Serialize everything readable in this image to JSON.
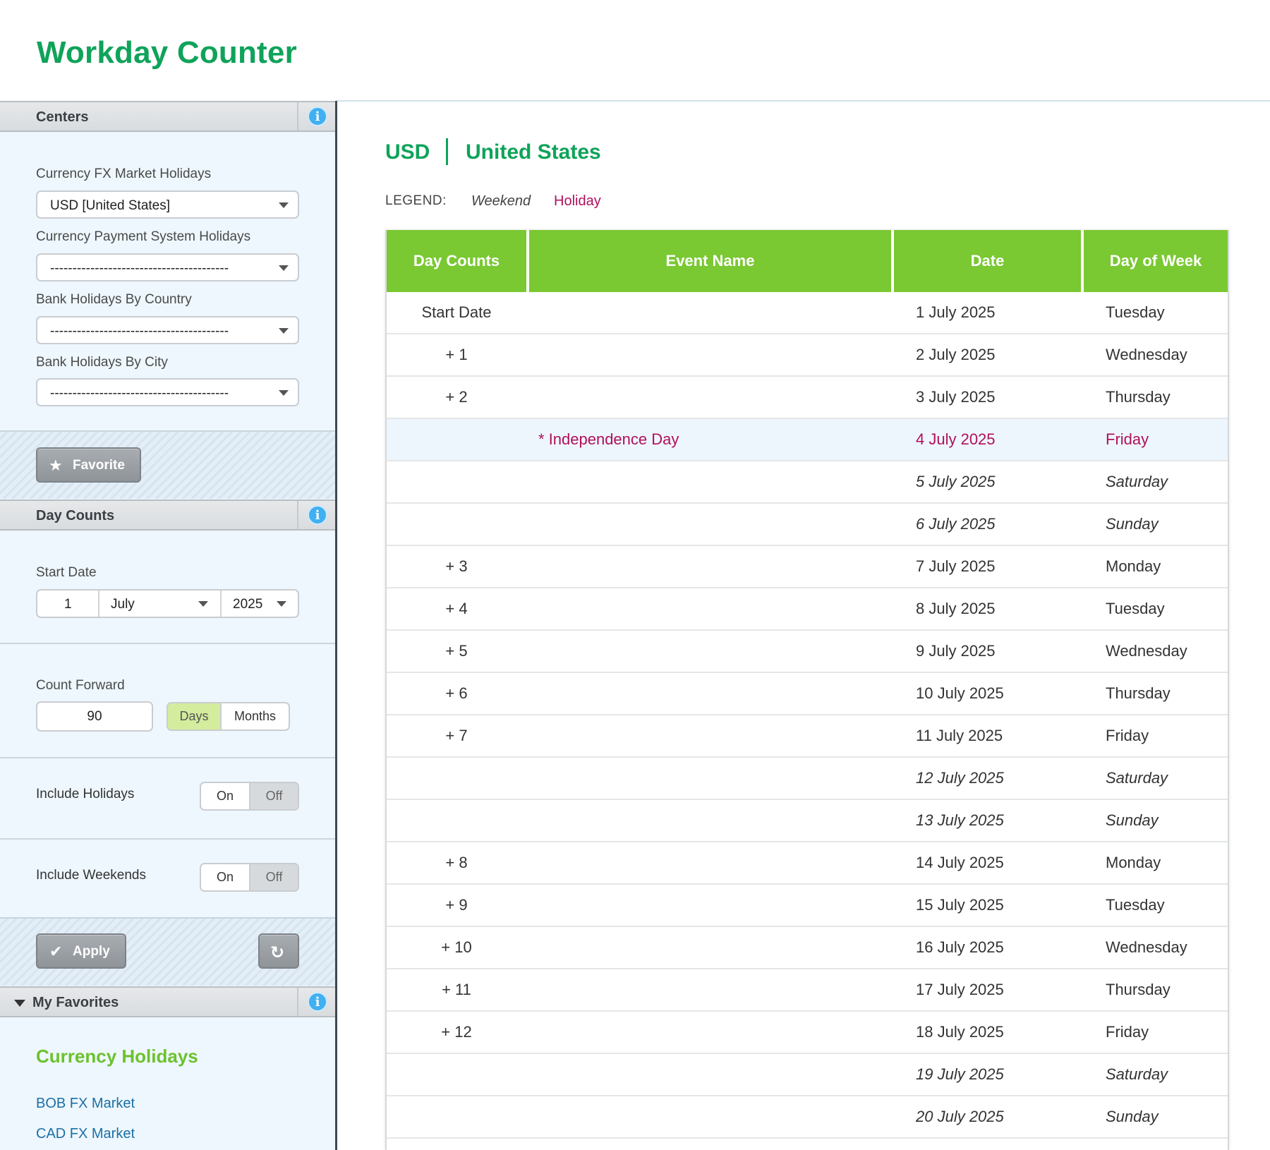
{
  "app": {
    "title": "Workday Counter"
  },
  "sidebar": {
    "centers": {
      "heading": "Centers",
      "fx_label": "Currency FX Market Holidays",
      "fx_value": "USD [United States]",
      "payment_label": "Currency Payment System Holidays",
      "payment_value": "----------------------------------------",
      "bank_country_label": "Bank Holidays By Country",
      "bank_country_value": "----------------------------------------",
      "bank_city_label": "Bank Holidays By City",
      "bank_city_value": "----------------------------------------",
      "favorite_button": "Favorite"
    },
    "day_counts": {
      "heading": "Day Counts",
      "start_date_label": "Start Date",
      "start_day": "1",
      "start_month": "July",
      "start_year": "2025",
      "count_forward_label": "Count Forward",
      "count_forward_value": "90",
      "unit_days": "Days",
      "unit_months": "Months",
      "unit_selected": "Days",
      "include_holidays_label": "Include Holidays",
      "include_holidays_on": "On",
      "include_holidays_off": "Off",
      "include_holidays_selected": "Off",
      "include_weekends_label": "Include Weekends",
      "include_weekends_on": "On",
      "include_weekends_off": "Off",
      "include_weekends_selected": "Off",
      "apply_button": "Apply"
    },
    "favorites": {
      "heading": "My Favorites",
      "group_title": "Currency Holidays",
      "links": [
        "BOB FX Market",
        "CAD FX Market"
      ]
    }
  },
  "main": {
    "currency_code": "USD",
    "country": "United States",
    "legend": {
      "label": "LEGEND:",
      "weekend": "Weekend",
      "holiday": "Holiday"
    },
    "colors": {
      "brand_green": "#0fa35a",
      "header_green": "#7ac832",
      "holiday": "#b0105c"
    },
    "table": {
      "columns": [
        "Day Counts",
        "Event Name",
        "Date",
        "Day of Week"
      ],
      "rows": [
        {
          "count": "Start Date",
          "event": "",
          "date": "1 July 2025",
          "dow": "Tuesday",
          "type": "normal"
        },
        {
          "count": "+ 1",
          "event": "",
          "date": "2 July 2025",
          "dow": "Wednesday",
          "type": "normal"
        },
        {
          "count": "+ 2",
          "event": "",
          "date": "3 July 2025",
          "dow": "Thursday",
          "type": "normal"
        },
        {
          "count": "",
          "event": "* Independence Day",
          "date": "4 July 2025",
          "dow": "Friday",
          "type": "holiday"
        },
        {
          "count": "",
          "event": "",
          "date": "5 July 2025",
          "dow": "Saturday",
          "type": "weekend"
        },
        {
          "count": "",
          "event": "",
          "date": "6 July 2025",
          "dow": "Sunday",
          "type": "weekend"
        },
        {
          "count": "+ 3",
          "event": "",
          "date": "7 July 2025",
          "dow": "Monday",
          "type": "normal"
        },
        {
          "count": "+ 4",
          "event": "",
          "date": "8 July 2025",
          "dow": "Tuesday",
          "type": "normal"
        },
        {
          "count": "+ 5",
          "event": "",
          "date": "9 July 2025",
          "dow": "Wednesday",
          "type": "normal"
        },
        {
          "count": "+ 6",
          "event": "",
          "date": "10 July 2025",
          "dow": "Thursday",
          "type": "normal"
        },
        {
          "count": "+ 7",
          "event": "",
          "date": "11 July 2025",
          "dow": "Friday",
          "type": "normal"
        },
        {
          "count": "",
          "event": "",
          "date": "12 July 2025",
          "dow": "Saturday",
          "type": "weekend"
        },
        {
          "count": "",
          "event": "",
          "date": "13 July 2025",
          "dow": "Sunday",
          "type": "weekend"
        },
        {
          "count": "+ 8",
          "event": "",
          "date": "14 July 2025",
          "dow": "Monday",
          "type": "normal"
        },
        {
          "count": "+ 9",
          "event": "",
          "date": "15 July 2025",
          "dow": "Tuesday",
          "type": "normal"
        },
        {
          "count": "+ 10",
          "event": "",
          "date": "16 July 2025",
          "dow": "Wednesday",
          "type": "normal"
        },
        {
          "count": "+ 11",
          "event": "",
          "date": "17 July 2025",
          "dow": "Thursday",
          "type": "normal"
        },
        {
          "count": "+ 12",
          "event": "",
          "date": "18 July 2025",
          "dow": "Friday",
          "type": "normal"
        },
        {
          "count": "",
          "event": "",
          "date": "19 July 2025",
          "dow": "Saturday",
          "type": "weekend"
        },
        {
          "count": "",
          "event": "",
          "date": "20 July 2025",
          "dow": "Sunday",
          "type": "weekend"
        }
      ]
    }
  }
}
